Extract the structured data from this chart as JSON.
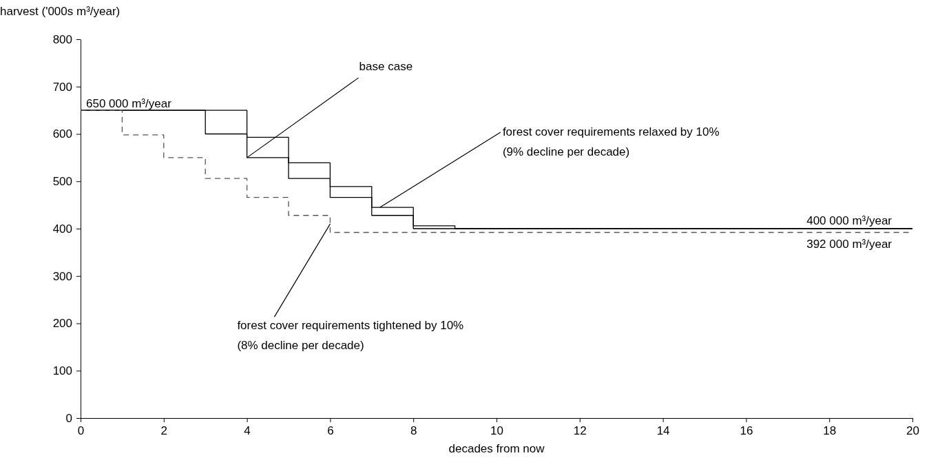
{
  "chart_data": {
    "type": "step",
    "xlabel": "decades from now",
    "ylabel": "harvest ('000s m³/year)",
    "xlim": [
      0,
      20
    ],
    "xticks": [
      0,
      2,
      4,
      6,
      8,
      10,
      12,
      14,
      16,
      18,
      20
    ],
    "ylim": [
      0,
      800
    ],
    "yticks": [
      0,
      100,
      200,
      300,
      400,
      500,
      600,
      700,
      800
    ],
    "grid": false,
    "marker": "none",
    "series": [
      {
        "color": "#000000",
        "line_style": "solid",
        "x": [
          0,
          3,
          4,
          5,
          6,
          7,
          8,
          20
        ],
        "values": [
          650,
          600,
          550,
          506,
          466,
          428,
          400,
          400
        ]
      },
      {
        "color": "#000000",
        "line_style": "solid",
        "x": [
          0,
          4,
          5,
          6,
          7,
          8,
          9,
          20
        ],
        "values": [
          650,
          593,
          539,
          489,
          445,
          406,
          400,
          400
        ]
      },
      {
        "color": "#555555",
        "line_style": "dashed",
        "x": [
          0,
          1,
          2,
          3,
          4,
          5,
          6,
          20
        ],
        "values": [
          650,
          598,
          550,
          506,
          466,
          428,
          392,
          392
        ]
      }
    ],
    "annotations": [
      {
        "text": "650 000 m³/year",
        "x": 0,
        "y": 650
      },
      {
        "text": "400 000 m³/year",
        "x": 20,
        "y": 400
      },
      {
        "text": "392 000 m³/year",
        "x": 20,
        "y": 392
      },
      {
        "text": "base case",
        "x": 4,
        "y": 550
      },
      {
        "text": "forest cover requirements relaxed by 10%\n(9% decline per decade)",
        "x": 7.2,
        "y": 445
      },
      {
        "text": "forest cover requirements tightened by 10%\n(8% decline per decade)",
        "x": 6,
        "y": 410
      }
    ]
  }
}
